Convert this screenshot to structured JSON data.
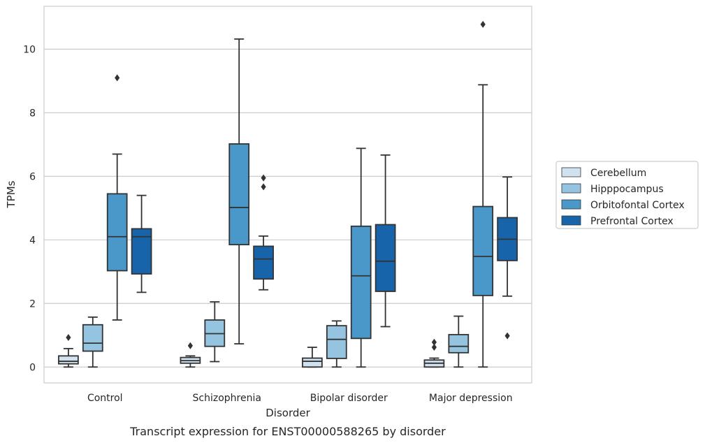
{
  "caption": "Transcript expression for ENST00000588265 by disorder",
  "colors": {
    "Cerebellum": "#d0e1f0",
    "Hipppocampus": "#94c4df",
    "Orbitofontal Cortex": "#4a98c9",
    "Prefrontal Cortex": "#1764ab",
    "edge": "#333333",
    "grid": "#cccccc",
    "frame": "#cccccc"
  },
  "chart_data": {
    "type": "box",
    "title": "",
    "xlabel": "Disorder",
    "ylabel": "TPMs",
    "ylim": [
      -0.5,
      11.35
    ],
    "yticks": [
      0,
      2,
      4,
      6,
      8,
      10
    ],
    "grid": "horizontal",
    "legend_position": "outside-right",
    "categories": [
      "Control",
      "Schizophrenia",
      "Bipolar disorder",
      "Major depression"
    ],
    "series": [
      {
        "name": "Cerebellum",
        "boxes": [
          {
            "whislo": 0.0,
            "q1": 0.1,
            "med": 0.18,
            "q3": 0.35,
            "whishi": 0.58,
            "fliers": [
              0.93
            ]
          },
          {
            "whislo": 0.0,
            "q1": 0.12,
            "med": 0.2,
            "q3": 0.3,
            "whishi": 0.35,
            "fliers": [
              0.67
            ]
          },
          {
            "whislo": 0.0,
            "q1": 0.0,
            "med": 0.18,
            "q3": 0.28,
            "whishi": 0.62,
            "fliers": []
          },
          {
            "whislo": 0.0,
            "q1": 0.0,
            "med": 0.12,
            "q3": 0.22,
            "whishi": 0.28,
            "fliers": [
              0.62,
              0.78
            ]
          }
        ]
      },
      {
        "name": "Hipppocampus",
        "boxes": [
          {
            "whislo": 0.0,
            "q1": 0.5,
            "med": 0.75,
            "q3": 1.33,
            "whishi": 1.57,
            "fliers": []
          },
          {
            "whislo": 0.17,
            "q1": 0.65,
            "med": 1.05,
            "q3": 1.48,
            "whishi": 2.05,
            "fliers": []
          },
          {
            "whislo": 0.0,
            "q1": 0.27,
            "med": 0.87,
            "q3": 1.3,
            "whishi": 1.45,
            "fliers": []
          },
          {
            "whislo": 0.0,
            "q1": 0.45,
            "med": 0.65,
            "q3": 1.02,
            "whishi": 1.6,
            "fliers": []
          }
        ]
      },
      {
        "name": "Orbitofontal Cortex",
        "boxes": [
          {
            "whislo": 1.48,
            "q1": 3.03,
            "med": 4.1,
            "q3": 5.45,
            "whishi": 6.7,
            "fliers": [
              9.1
            ]
          },
          {
            "whislo": 0.73,
            "q1": 3.85,
            "med": 5.02,
            "q3": 7.02,
            "whishi": 10.32,
            "fliers": []
          },
          {
            "whislo": 0.0,
            "q1": 0.9,
            "med": 2.87,
            "q3": 4.43,
            "whishi": 6.88,
            "fliers": []
          },
          {
            "whislo": 0.0,
            "q1": 2.25,
            "med": 3.48,
            "q3": 5.05,
            "whishi": 8.88,
            "fliers": [
              10.78
            ]
          }
        ]
      },
      {
        "name": "Prefrontal Cortex",
        "boxes": [
          {
            "whislo": 2.35,
            "q1": 2.93,
            "med": 4.1,
            "q3": 4.35,
            "whishi": 5.4,
            "fliers": []
          },
          {
            "whislo": 2.43,
            "q1": 2.77,
            "med": 3.4,
            "q3": 3.8,
            "whishi": 4.12,
            "fliers": [
              5.67,
              5.95
            ]
          },
          {
            "whislo": 1.27,
            "q1": 2.38,
            "med": 3.33,
            "q3": 4.48,
            "whishi": 6.67,
            "fliers": []
          },
          {
            "whislo": 2.23,
            "q1": 3.35,
            "med": 4.02,
            "q3": 4.7,
            "whishi": 5.98,
            "fliers": [
              0.98
            ]
          }
        ]
      }
    ]
  }
}
